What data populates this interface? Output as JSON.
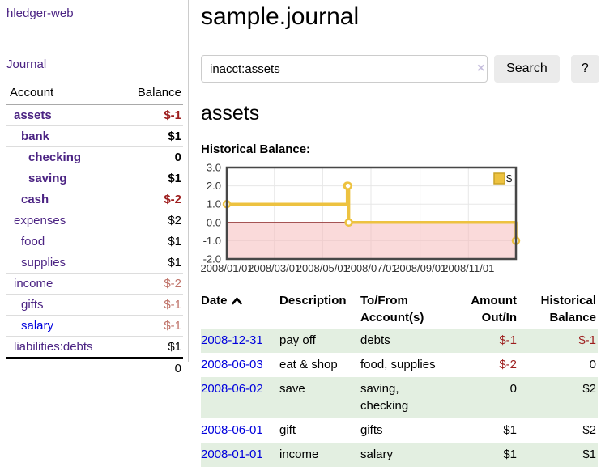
{
  "app": {
    "brand": "hledger-web",
    "nav": {
      "journal": "Journal"
    }
  },
  "sidebar": {
    "columns": {
      "account": "Account",
      "balance": "Balance"
    },
    "accounts": [
      {
        "name": "assets",
        "level": 1,
        "bold": true,
        "balance": "$-1",
        "balance_style": "neg-strong"
      },
      {
        "name": "bank",
        "level": 2,
        "bold": true,
        "balance": "$1",
        "balance_style": "pos"
      },
      {
        "name": "checking",
        "level": 3,
        "bold": true,
        "balance": "0",
        "balance_style": "pos"
      },
      {
        "name": "saving",
        "level": 3,
        "bold": true,
        "balance": "$1",
        "balance_style": "pos"
      },
      {
        "name": "cash",
        "level": 2,
        "bold": true,
        "balance": "$-2",
        "balance_style": "neg-strong"
      },
      {
        "name": "expenses",
        "level": 1,
        "bold": false,
        "balance": "$2",
        "balance_style": "pos"
      },
      {
        "name": "food",
        "level": 2,
        "bold": false,
        "balance": "$1",
        "balance_style": "pos"
      },
      {
        "name": "supplies",
        "level": 2,
        "bold": false,
        "balance": "$1",
        "balance_style": "pos"
      },
      {
        "name": "income",
        "level": 1,
        "bold": false,
        "balance": "$-2",
        "balance_style": "neg-soft"
      },
      {
        "name": "gifts",
        "level": 2,
        "bold": false,
        "balance": "$-1",
        "balance_style": "neg-soft"
      },
      {
        "name": "salary",
        "level": 2,
        "bold": false,
        "balance": "$-1",
        "balance_style": "neg-soft",
        "link_color": "blue"
      },
      {
        "name": "liabilities:debts",
        "level": 1,
        "bold": false,
        "balance": "$1",
        "balance_style": "pos"
      }
    ],
    "total": "0"
  },
  "main": {
    "title": "sample.journal"
  },
  "search": {
    "value": "inacct:assets",
    "clear_label": "×",
    "search_button": "Search",
    "help_button": "?"
  },
  "account_view": {
    "heading": "assets",
    "chart_title": "Historical Balance:"
  },
  "chart_data": {
    "type": "line",
    "line_style": "step",
    "title": "Historical Balance",
    "series": [
      {
        "name": "$",
        "color": "#edc240",
        "points": [
          [
            "2008-01-01",
            1
          ],
          [
            "2008-06-01",
            2
          ],
          [
            "2008-06-02",
            2
          ],
          [
            "2008-06-03",
            0
          ],
          [
            "2008-12-31",
            -1
          ]
        ]
      }
    ],
    "x_start": "2008-01-01",
    "x_end": "2008-12-31",
    "x_ticks": [
      "2008/01/01",
      "2008/03/01",
      "2008/05/01",
      "2008/07/01",
      "2008/09/01",
      "2008/11/01"
    ],
    "y_ticks": [
      3.0,
      2.0,
      1.0,
      0.0,
      -1.0,
      -2.0
    ],
    "ylim": [
      -2,
      3
    ],
    "grid": true,
    "legend": {
      "label": "$",
      "position": "top-right"
    },
    "negative_region_color": "#f6bcbc",
    "zero_line_color": "#8b2020",
    "border_color": "#474747",
    "grid_color": "#e7e7e7"
  },
  "register": {
    "headers": {
      "date": "Date",
      "description": "Description",
      "accounts": "To/From Account(s)",
      "amount": "Amount Out/In",
      "balance": "Historical Balance"
    },
    "sort": {
      "column": "date",
      "direction": "ascending"
    },
    "rows": [
      {
        "date": "2008-12-31",
        "description": "pay off",
        "accounts": "debts",
        "amount": "$-1",
        "amount_neg": true,
        "balance": "$-1",
        "balance_neg": true
      },
      {
        "date": "2008-06-03",
        "description": "eat & shop",
        "accounts": "food, supplies",
        "amount": "$-2",
        "amount_neg": true,
        "balance": "0",
        "balance_neg": false
      },
      {
        "date": "2008-06-02",
        "description": "save",
        "accounts": "saving, checking",
        "amount": "0",
        "amount_neg": false,
        "balance": "$2",
        "balance_neg": false
      },
      {
        "date": "2008-06-01",
        "description": "gift",
        "accounts": "gifts",
        "amount": "$1",
        "amount_neg": false,
        "balance": "$2",
        "balance_neg": false
      },
      {
        "date": "2008-01-01",
        "description": "income",
        "accounts": "salary",
        "amount": "$1",
        "amount_neg": false,
        "balance": "$1",
        "balance_neg": false
      }
    ]
  },
  "colors": {
    "link_purple": "#4b2383",
    "link_blue": "#0000dd",
    "negative_strong": "#9d1d1d",
    "negative_soft": "#bf7268",
    "row_green": "#e3efe1",
    "series_gold": "#edc240"
  }
}
